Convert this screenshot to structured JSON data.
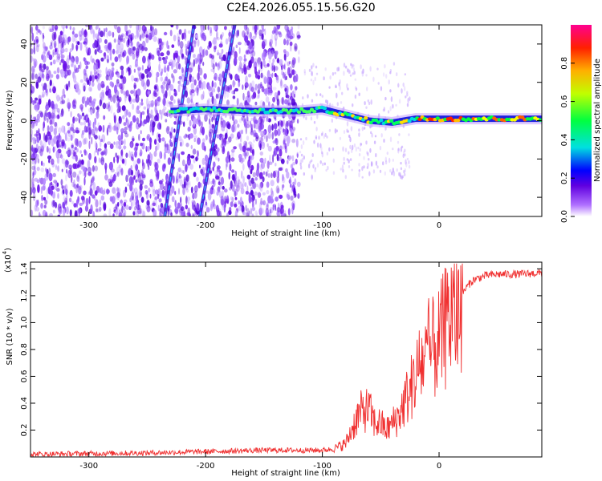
{
  "figure": {
    "title": "C2E4.2026.055.15.56.G20"
  },
  "chart_data": [
    {
      "type": "heatmap",
      "title": "C2E4.2026.055.15.56.G20",
      "xlabel": "Height of straight line (km)",
      "ylabel": "Frequency (Hz)",
      "xlim": [
        -350,
        88
      ],
      "ylim": [
        -50,
        50
      ],
      "x_ticks": [
        "-300",
        "-200",
        "-100",
        "0"
      ],
      "x_tick_values": [
        -300,
        -200,
        -100,
        0
      ],
      "y_ticks": [
        "-40",
        "-20",
        "0",
        "20",
        "40"
      ],
      "y_tick_values": [
        -40,
        -20,
        0,
        20,
        40
      ],
      "colorbar": {
        "label": "Normalized spectral amplitude",
        "range": [
          0,
          1
        ],
        "ticks": [
          "0.0",
          "0.2",
          "0.4",
          "0.6",
          "0.8"
        ],
        "tick_values": [
          0.0,
          0.2,
          0.4,
          0.6,
          0.8
        ],
        "colormap": [
          "#ffffff",
          "#a040ff",
          "#6000e0",
          "#0000ff",
          "#00e0e0",
          "#00ff00",
          "#ffff00",
          "#ff8000",
          "#ff0000",
          "#ff00a0"
        ]
      },
      "ridge": {
        "description_points_x": [
          -230,
          -200,
          -160,
          -120,
          -100,
          -80,
          -60,
          -40,
          -20,
          0,
          20,
          50,
          88
        ],
        "description_points_y": [
          5,
          6,
          5,
          5,
          6,
          3,
          0,
          -1,
          1,
          1,
          1,
          1,
          1
        ]
      },
      "slant_lines": [
        {
          "x_start": -235,
          "y_start": -50,
          "x_end": -210,
          "y_end": 50
        },
        {
          "x_start": -205,
          "y_start": -50,
          "x_end": -175,
          "y_end": 50
        }
      ]
    },
    {
      "type": "line",
      "xlabel": "Height of straight line (km)",
      "ylabel": "SNR (10 * v/v)",
      "y_scale_label": "(x10",
      "y_scale_exponent": "4",
      "y_scale_close": ")",
      "xlim": [
        -350,
        88
      ],
      "ylim": [
        0,
        1.45
      ],
      "x_ticks": [
        "-300",
        "-200",
        "-100",
        "0"
      ],
      "x_tick_values": [
        -300,
        -200,
        -100,
        0
      ],
      "y_ticks": [
        "0.2",
        "0.4",
        "0.6",
        "0.8",
        "1.0",
        "1.2",
        "1.4"
      ],
      "y_tick_values": [
        0.2,
        0.4,
        0.6,
        0.8,
        1.0,
        1.2,
        1.4
      ],
      "series": [
        {
          "color": "#f03030",
          "x": [
            -350,
            -300,
            -250,
            -200,
            -150,
            -120,
            -100,
            -90,
            -80,
            -75,
            -70,
            -65,
            -60,
            -55,
            -50,
            -45,
            -40,
            -35,
            -30,
            -25,
            -20,
            -15,
            -10,
            -5,
            0,
            5,
            10,
            15,
            20,
            25,
            30,
            40,
            50,
            60,
            70,
            88
          ],
          "y": [
            0.02,
            0.025,
            0.03,
            0.04,
            0.05,
            0.05,
            0.05,
            0.06,
            0.1,
            0.2,
            0.3,
            0.35,
            0.35,
            0.25,
            0.25,
            0.2,
            0.25,
            0.3,
            0.4,
            0.5,
            0.6,
            0.7,
            0.75,
            0.8,
            0.85,
            0.95,
            1.05,
            1.15,
            1.22,
            1.28,
            1.32,
            1.35,
            1.36,
            1.36,
            1.36,
            1.37
          ]
        }
      ]
    }
  ]
}
